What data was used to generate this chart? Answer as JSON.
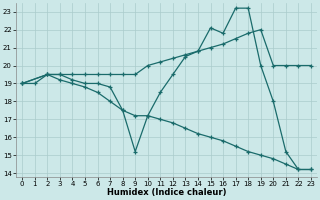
{
  "xlabel": "Humidex (Indice chaleur)",
  "background_color": "#cce8e8",
  "grid_color": "#aacccc",
  "line_color": "#1a6b6b",
  "xlim": [
    -0.5,
    23.5
  ],
  "ylim": [
    13.8,
    23.5
  ],
  "yticks": [
    14,
    15,
    16,
    17,
    18,
    19,
    20,
    21,
    22,
    23
  ],
  "xticks": [
    0,
    1,
    2,
    3,
    4,
    5,
    6,
    7,
    8,
    9,
    10,
    11,
    12,
    13,
    14,
    15,
    16,
    17,
    18,
    19,
    20,
    21,
    22,
    23
  ],
  "line1_x": [
    0,
    1,
    2,
    3,
    4,
    5,
    6,
    7,
    8,
    9,
    10,
    11,
    12,
    13,
    14,
    15,
    16,
    17,
    18,
    19,
    20,
    21,
    22,
    23
  ],
  "line1_y": [
    19,
    19,
    19.5,
    19.5,
    19.2,
    19.0,
    19.0,
    18.8,
    17.5,
    15.2,
    17.2,
    18.5,
    19.5,
    20.5,
    20.8,
    22.1,
    21.8,
    23.2,
    23.2,
    20.0,
    18.0,
    15.2,
    14.2,
    14.2
  ],
  "line2_x": [
    0,
    2,
    3,
    4,
    5,
    6,
    7,
    8,
    9,
    10,
    11,
    12,
    13,
    14,
    15,
    16,
    17,
    18,
    19,
    20,
    21,
    22,
    23
  ],
  "line2_y": [
    19,
    19.5,
    19.5,
    19.5,
    19.5,
    19.5,
    19.5,
    19.5,
    19.5,
    20.0,
    20.2,
    20.4,
    20.6,
    20.8,
    21.0,
    21.2,
    21.5,
    21.8,
    22.0,
    20.0,
    20.0,
    20.0,
    20.0
  ],
  "line3_x": [
    0,
    2,
    3,
    4,
    5,
    6,
    7,
    8,
    9,
    10,
    11,
    12,
    13,
    14,
    15,
    16,
    17,
    18,
    19,
    20,
    21,
    22,
    23
  ],
  "line3_y": [
    19,
    19.5,
    19.2,
    19.0,
    18.8,
    18.5,
    18.0,
    17.5,
    17.2,
    17.2,
    17.0,
    16.8,
    16.5,
    16.2,
    16.0,
    15.8,
    15.5,
    15.2,
    15.0,
    14.8,
    14.5,
    14.2,
    14.2
  ]
}
